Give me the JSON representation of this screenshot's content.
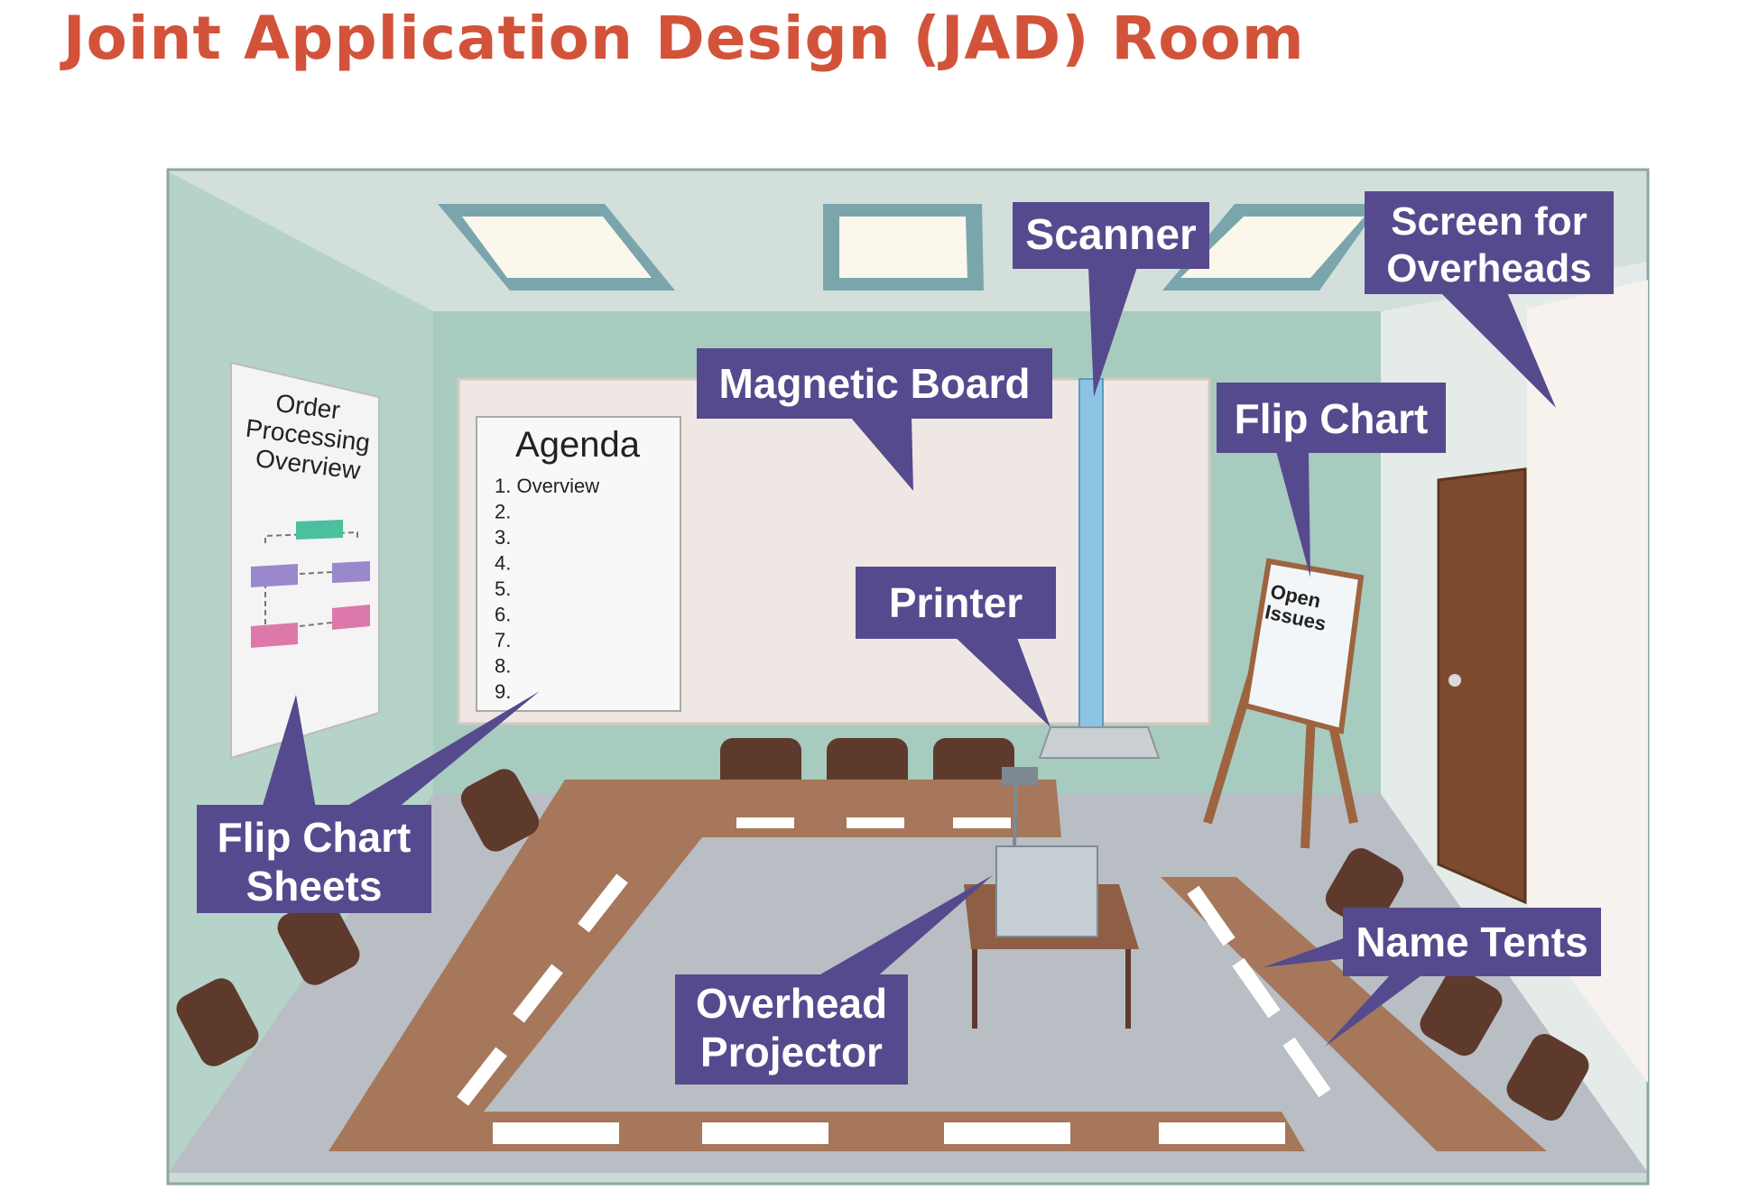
{
  "title": "Joint Application Design (JAD) Room",
  "colors": {
    "title": "#d2533a",
    "callout_bg": "#564a8e",
    "wall": "#a9cdc1",
    "table": "#a6775a",
    "floor": "#b9bfc3",
    "door": "#7d4a2e"
  },
  "callouts": {
    "scanner": [
      "Scanner"
    ],
    "screen": [
      "Screen for",
      "Overheads"
    ],
    "magnetic_board": [
      "Magnetic Board"
    ],
    "flip_chart": [
      "Flip Chart"
    ],
    "printer": [
      "Printer"
    ],
    "flip_chart_sheets": [
      "Flip Chart",
      "Sheets"
    ],
    "name_tents": [
      "Name Tents"
    ],
    "overhead_projector": [
      "Overhead",
      "Projector"
    ]
  },
  "order_sheet": {
    "lines": [
      "Order",
      "Processing",
      "Overview"
    ]
  },
  "agenda": {
    "heading": "Agenda",
    "items": [
      "1. Overview",
      "2.",
      "3.",
      "4.",
      "5.",
      "6.",
      "7.",
      "8.",
      "9."
    ]
  },
  "easel_pad": {
    "lines": [
      "Open",
      "Issues"
    ]
  }
}
